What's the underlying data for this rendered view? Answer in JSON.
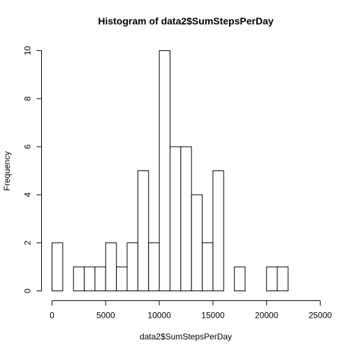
{
  "chart_data": {
    "type": "bar",
    "title": "Histogram of data2$SumStepsPerDay",
    "xlabel": "data2$SumStepsPerDay",
    "ylabel": "Frequency",
    "bin_width": 1000,
    "bin_starts": [
      0,
      1000,
      2000,
      3000,
      4000,
      5000,
      6000,
      7000,
      8000,
      9000,
      10000,
      11000,
      12000,
      13000,
      14000,
      15000,
      16000,
      17000,
      18000,
      19000,
      20000,
      21000,
      22000,
      23000,
      24000
    ],
    "values": [
      2,
      0,
      1,
      1,
      1,
      2,
      1,
      2,
      5,
      2,
      10,
      6,
      6,
      4,
      2,
      5,
      0,
      1,
      0,
      0,
      1,
      1,
      0,
      0,
      0
    ],
    "xlim": [
      0,
      25000
    ],
    "ylim": [
      0,
      10
    ],
    "x_ticks": [
      0,
      5000,
      10000,
      15000,
      20000,
      25000
    ],
    "x_tick_labels": [
      "0",
      "5000",
      "10000",
      "15000",
      "20000",
      "25000"
    ],
    "y_ticks": [
      0,
      2,
      4,
      6,
      8,
      10
    ],
    "y_tick_labels": [
      "0",
      "2",
      "4",
      "6",
      "8",
      "10"
    ],
    "grid": false,
    "legend": "none"
  }
}
